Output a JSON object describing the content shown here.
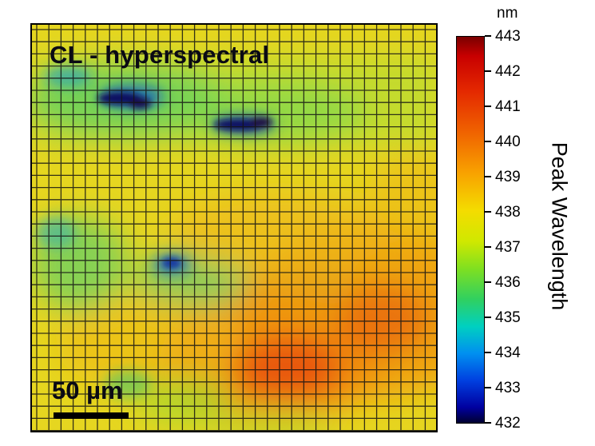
{
  "image": {
    "title": "CL - hyperspectral",
    "scale_bar_label": "50 µm"
  },
  "colorbar": {
    "unit": "nm",
    "label": "Peak Wavelength",
    "min": 432,
    "max": 443,
    "ticks": [
      "443",
      "442",
      "441",
      "440",
      "439",
      "438",
      "437",
      "436",
      "435",
      "434",
      "433",
      "432"
    ],
    "colormap": "jet"
  }
}
